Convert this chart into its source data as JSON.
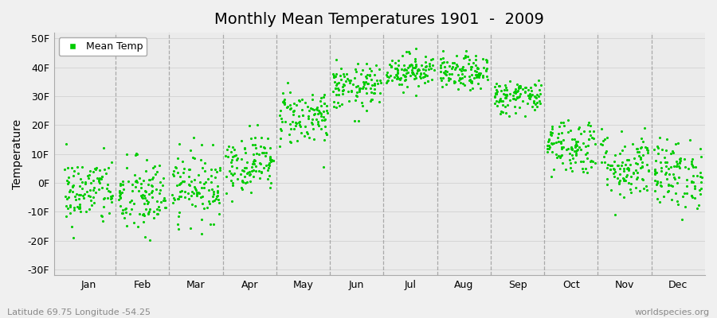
{
  "title": "Monthly Mean Temperatures 1901  -  2009",
  "ylabel": "Temperature",
  "yticks": [
    -30,
    -20,
    -10,
    0,
    10,
    20,
    30,
    40,
    50
  ],
  "ytick_labels": [
    "-30F",
    "-20F",
    "-10F",
    "0F",
    "10F",
    "20F",
    "30F",
    "40F",
    "50F"
  ],
  "ylim": [
    -32,
    52
  ],
  "months": [
    "Jan",
    "Feb",
    "Mar",
    "Apr",
    "May",
    "Jun",
    "Jul",
    "Aug",
    "Sep",
    "Oct",
    "Nov",
    "Dec"
  ],
  "month_means": [
    -3,
    -5,
    -1,
    7,
    23,
    33,
    39,
    38,
    30,
    13,
    6,
    3
  ],
  "month_stds": [
    6,
    7,
    6,
    5,
    5,
    4,
    3,
    3,
    3,
    5,
    6,
    6
  ],
  "dot_color": "#00CC00",
  "plot_bg_color": "#EBEBEB",
  "fig_bg_color": "#F0F0F0",
  "legend_label": "Mean Temp",
  "bottom_left_text": "Latitude 69.75 Longitude -54.25",
  "bottom_right_text": "worldspecies.org",
  "n_years": 109,
  "seed": 42,
  "dot_size": 5,
  "dashed_line_color": "#999999",
  "title_fontsize": 14,
  "tick_fontsize": 9
}
